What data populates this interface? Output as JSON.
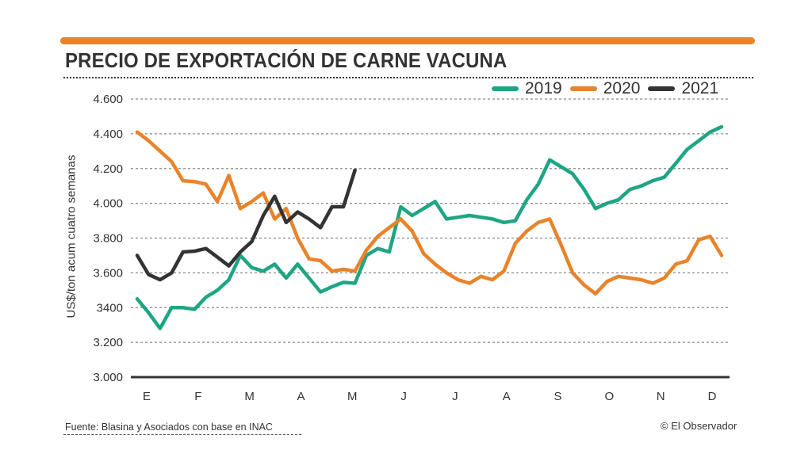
{
  "header": {
    "title": "PRECIO DE EXPORTACIÓN DE CARNE VACUNA"
  },
  "footer": {
    "source": "Fuente: Blasina y Asociados con base en INAC",
    "credit": "© El Observador"
  },
  "colors": {
    "accent_bar": "#e9832a",
    "series_2019": "#1ea584",
    "series_2020": "#e9832a",
    "series_2021": "#333333"
  },
  "chart_data": {
    "type": "line",
    "title": "PRECIO DE EXPORTACIÓN DE CARNE VACUNA",
    "xlabel": "",
    "ylabel": "US$/ton acum cuatro semanas",
    "ylim": [
      3000,
      4600
    ],
    "y_ticks": [
      3000,
      3200,
      3400,
      3600,
      3800,
      4000,
      4200,
      4400,
      4600
    ],
    "y_tick_labels": [
      "3.000",
      "3.200",
      "3400",
      "3.600",
      "3.800",
      "4.000",
      "4.200",
      "4.400",
      "4.600"
    ],
    "x_unit": "week",
    "x_range": [
      1,
      52
    ],
    "categories": [
      "E",
      "F",
      "M",
      "A",
      "M",
      "J",
      "J",
      "A",
      "S",
      "O",
      "N",
      "D"
    ],
    "grid": true,
    "legend": "top-right",
    "series": [
      {
        "name": "2019",
        "color": "#1ea584",
        "values": [
          3450,
          3370,
          3280,
          3400,
          3400,
          3390,
          3460,
          3500,
          3560,
          3700,
          3630,
          3610,
          3650,
          3570,
          3650,
          3570,
          3490,
          3520,
          3545,
          3540,
          3700,
          3740,
          3720,
          3980,
          3930,
          3970,
          4010,
          3910,
          3920,
          3930,
          3920,
          3910,
          3890,
          3900,
          4020,
          4110,
          4250,
          4210,
          4170,
          4080,
          3970,
          4000,
          4020,
          4080,
          4100,
          4130,
          4150,
          4230,
          4310,
          4360,
          4410,
          4440
        ]
      },
      {
        "name": "2020",
        "color": "#e9832a",
        "values": [
          4410,
          4360,
          4300,
          4240,
          4130,
          4125,
          4110,
          4010,
          4160,
          3970,
          4010,
          4060,
          3910,
          3970,
          3800,
          3680,
          3670,
          3610,
          3620,
          3610,
          3730,
          3810,
          3860,
          3910,
          3840,
          3710,
          3650,
          3600,
          3560,
          3540,
          3580,
          3560,
          3610,
          3770,
          3840,
          3890,
          3910,
          3760,
          3600,
          3530,
          3480,
          3550,
          3580,
          3570,
          3560,
          3540,
          3570,
          3650,
          3670,
          3790,
          3810,
          3700
        ]
      },
      {
        "name": "2021",
        "color": "#333333",
        "values": [
          3700,
          3590,
          3560,
          3600,
          3720,
          3725,
          3740,
          3690,
          3640,
          3720,
          3780,
          3930,
          4040,
          3890,
          3950,
          3910,
          3860,
          3980,
          3980,
          4190
        ]
      }
    ]
  }
}
